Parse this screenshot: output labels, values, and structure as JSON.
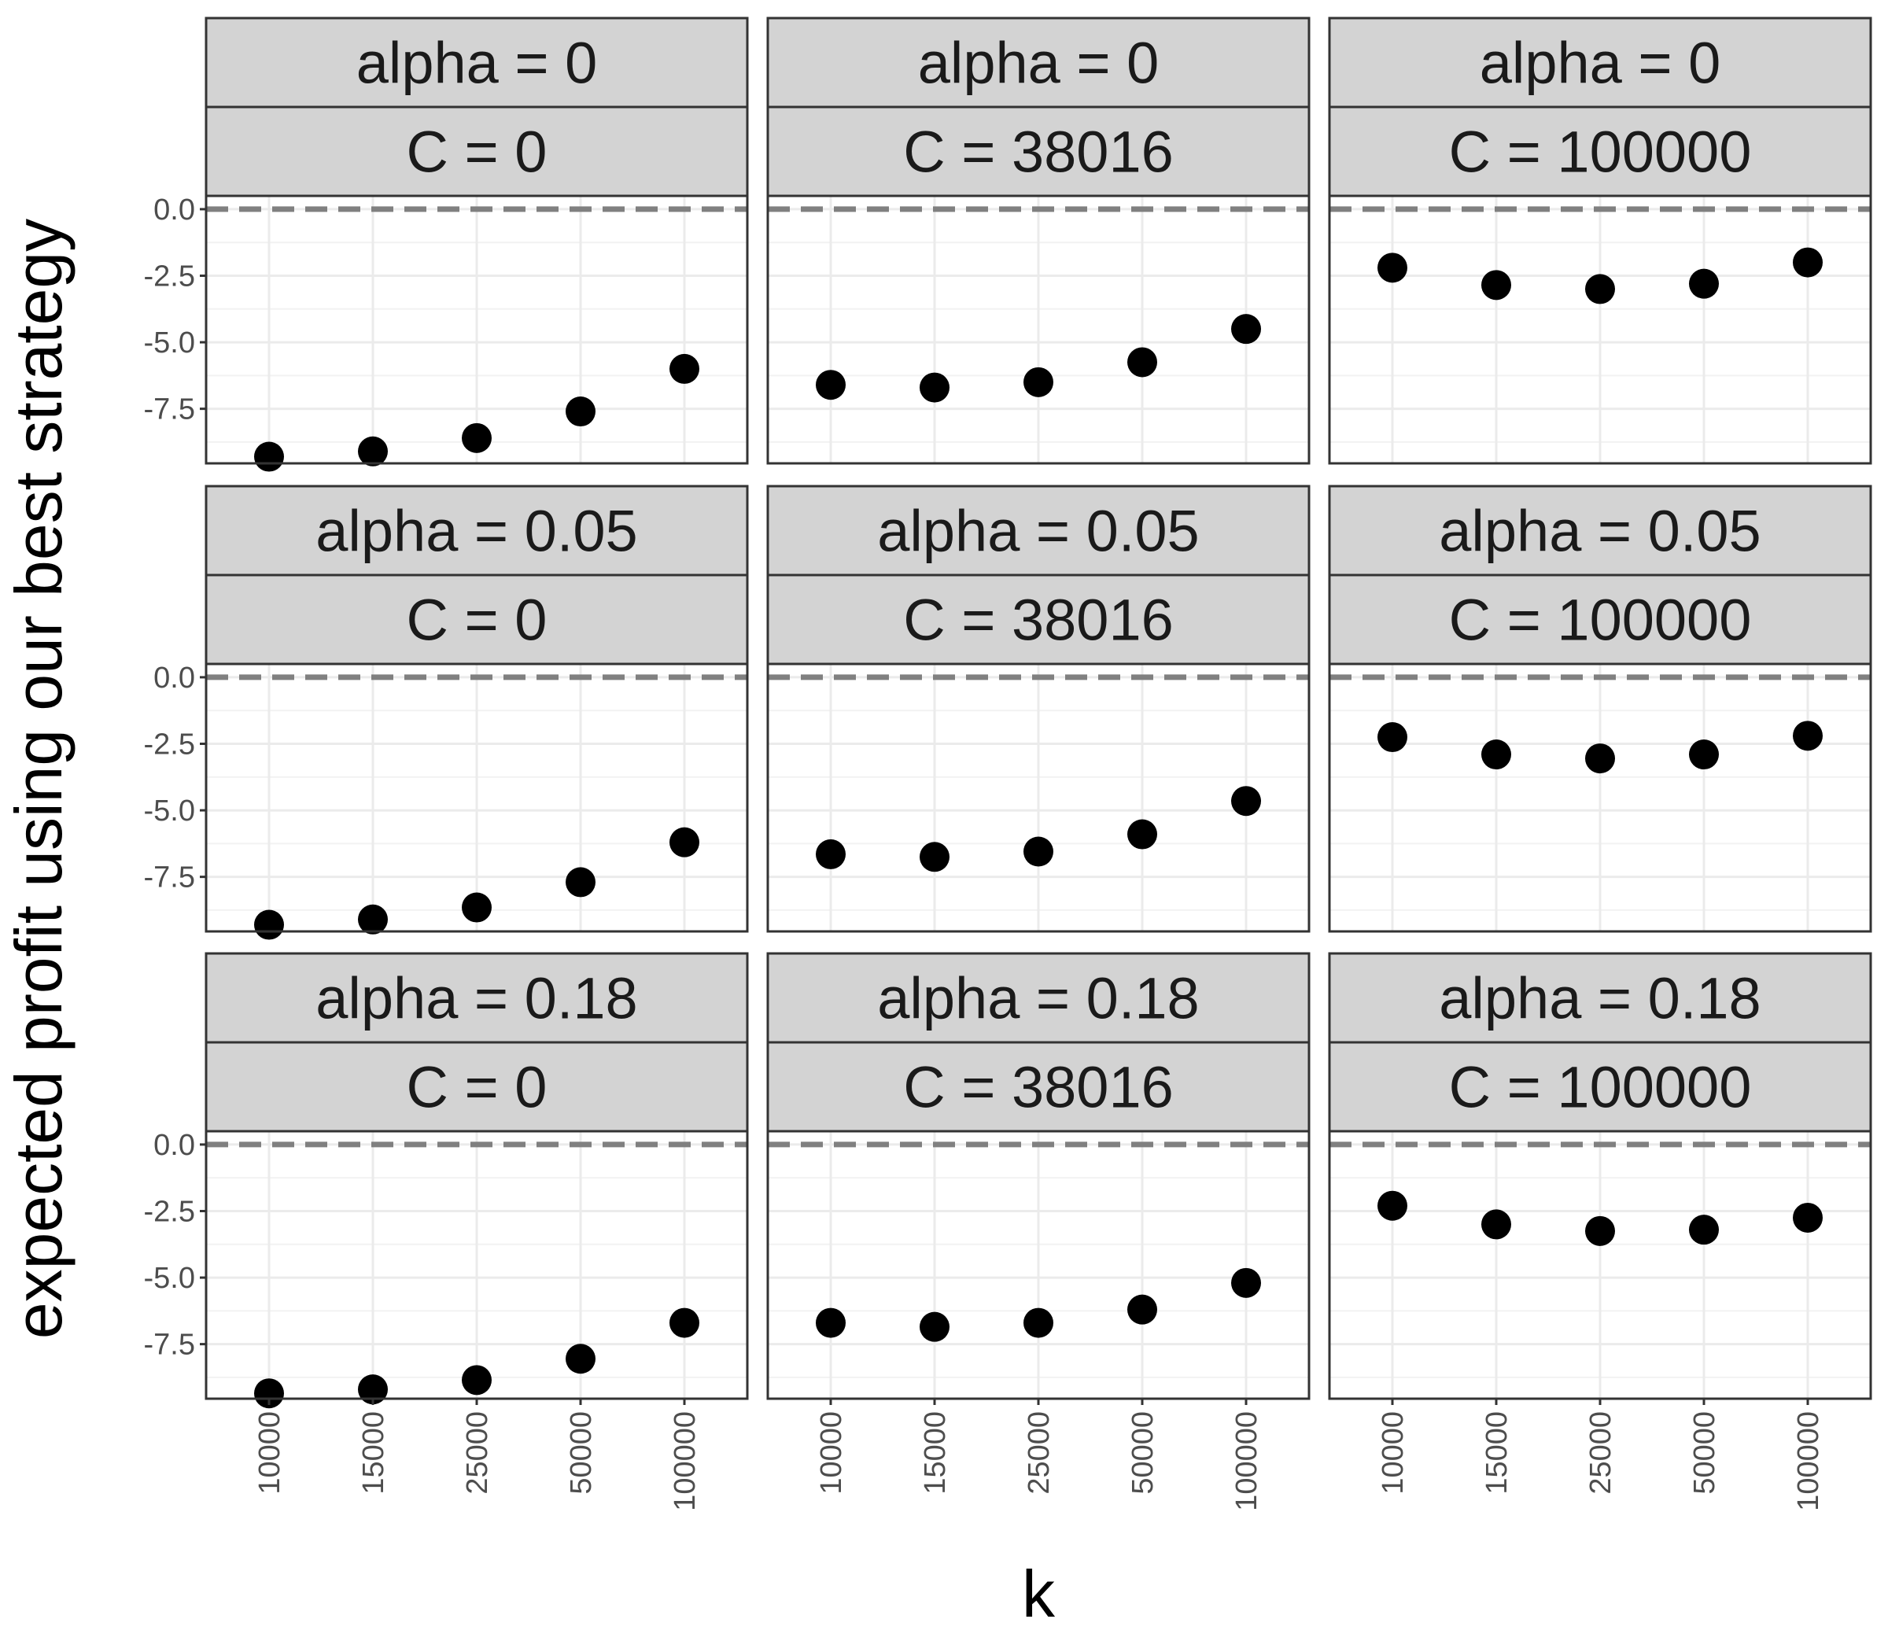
{
  "chart_data": {
    "type": "scatter",
    "facet_layout": "grid",
    "xlabel": "k",
    "ylabel": "expected profit using our best strategy",
    "x_categories": [
      "10000",
      "15000",
      "25000",
      "50000",
      "100000"
    ],
    "y_ticks": [
      0.0,
      -2.5,
      -5.0,
      -7.5
    ],
    "y_tick_labels": [
      "0.0",
      "-2.5",
      "-5.0",
      "-7.5"
    ],
    "ylim": [
      -9.55,
      0.5
    ],
    "reference_line": {
      "y": 0,
      "style": "dashed",
      "color": "#808080"
    },
    "grid": true,
    "point_color": "#000000",
    "strip_fill": "#d3d3d3",
    "panels": [
      {
        "alpha_label": "alpha = 0",
        "c_label": "C = 0",
        "values": [
          -9.3,
          -9.1,
          -8.6,
          -7.6,
          -6.0
        ]
      },
      {
        "alpha_label": "alpha = 0",
        "c_label": "C = 38016",
        "values": [
          -6.6,
          -6.7,
          -6.5,
          -5.75,
          -4.5
        ]
      },
      {
        "alpha_label": "alpha = 0",
        "c_label": "C = 100000",
        "values": [
          -2.2,
          -2.85,
          -3.0,
          -2.8,
          -2.0
        ]
      },
      {
        "alpha_label": "alpha = 0.05",
        "c_label": "C = 0",
        "values": [
          -9.3,
          -9.1,
          -8.65,
          -7.7,
          -6.2
        ]
      },
      {
        "alpha_label": "alpha = 0.05",
        "c_label": "C = 38016",
        "values": [
          -6.65,
          -6.75,
          -6.55,
          -5.9,
          -4.65
        ]
      },
      {
        "alpha_label": "alpha = 0.05",
        "c_label": "C = 100000",
        "values": [
          -2.25,
          -2.9,
          -3.05,
          -2.9,
          -2.2
        ]
      },
      {
        "alpha_label": "alpha = 0.18",
        "c_label": "C = 0",
        "values": [
          -9.35,
          -9.2,
          -8.85,
          -8.05,
          -6.7
        ]
      },
      {
        "alpha_label": "alpha = 0.18",
        "c_label": "C = 38016",
        "values": [
          -6.7,
          -6.85,
          -6.7,
          -6.2,
          -5.2
        ]
      },
      {
        "alpha_label": "alpha = 0.18",
        "c_label": "C = 100000",
        "values": [
          -2.3,
          -3.0,
          -3.25,
          -3.2,
          -2.75
        ]
      }
    ]
  }
}
